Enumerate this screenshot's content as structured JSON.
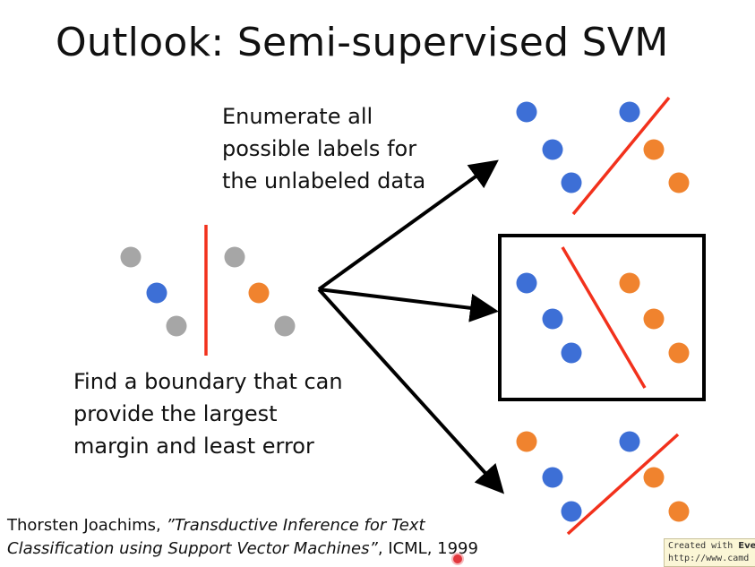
{
  "title": "Outlook: Semi-supervised SVM",
  "texts": {
    "enumerate_lines": [
      "Enumerate all",
      "possible labels for",
      "the unlabeled data"
    ],
    "find_lines": [
      "Find a boundary that can",
      "provide the largest",
      "margin and least error"
    ]
  },
  "citation": {
    "author": "Thorsten Joachims, ",
    "paper": "”Transductive Inference for Text",
    "paper2": "Classification using Support Vector Machines”",
    "venue": ", ICML, 1999"
  },
  "watermark": {
    "line1_prefix": "Created with ",
    "line1_bold": "Eve",
    "line2": "http://www.camd"
  },
  "colors": {
    "blue": "#3d6fd6",
    "orange": "#f0832e",
    "gray": "#a6a6a6",
    "red": "#f2311c",
    "black": "#000000"
  },
  "diagram": {
    "source_points": [
      "gray",
      "gray",
      "blue",
      "orange",
      "gray",
      "gray"
    ],
    "labelings": [
      {
        "name": "top",
        "points": [
          "blue",
          "blue",
          "blue",
          "orange",
          "blue",
          "orange"
        ],
        "selected": false
      },
      {
        "name": "middle",
        "points": [
          "blue",
          "orange",
          "blue",
          "orange",
          "blue",
          "orange"
        ],
        "selected": true
      },
      {
        "name": "bottom",
        "points": [
          "orange",
          "blue",
          "blue",
          "orange",
          "blue",
          "orange"
        ],
        "selected": false
      }
    ]
  }
}
